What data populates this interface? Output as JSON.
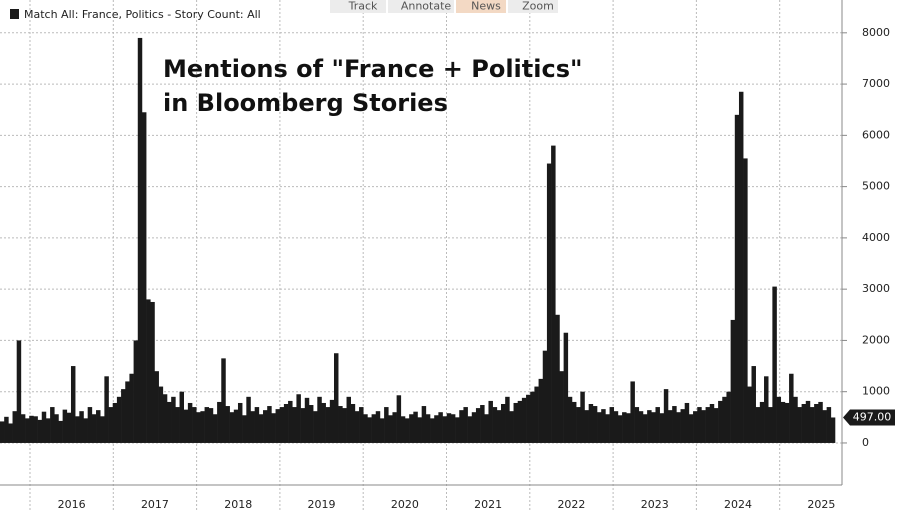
{
  "chart_data": {
    "type": "bar",
    "title": [
      "Mentions of \"France + Politics\"",
      "in Bloomberg Stories"
    ],
    "legend": "Match All: France, Politics - Story Count: All",
    "toolbar": [
      "Track",
      "Annotate",
      "News",
      "Zoom"
    ],
    "color": "#1a1a1a",
    "x_labels": [
      "2016",
      "2017",
      "2018",
      "2019",
      "2020",
      "2021",
      "2022",
      "2023",
      "2024",
      "2025"
    ],
    "ylim": [
      -820,
      8640
    ],
    "yticks": [
      0,
      1000,
      2000,
      3000,
      4000,
      5000,
      6000,
      7000,
      8000
    ],
    "grid": true,
    "last_value": {
      "value": 497,
      "label": "497.00"
    },
    "values": [
      420,
      510,
      380,
      620,
      2000,
      560,
      480,
      530,
      520,
      450,
      610,
      480,
      700,
      560,
      430,
      650,
      590,
      1500,
      520,
      620,
      480,
      700,
      560,
      640,
      520,
      1300,
      700,
      780,
      900,
      1050,
      1200,
      1350,
      2000,
      7900,
      6450,
      2800,
      2750,
      1400,
      1100,
      950,
      800,
      900,
      700,
      1000,
      650,
      780,
      700,
      600,
      620,
      700,
      680,
      560,
      800,
      1650,
      720,
      600,
      650,
      780,
      540,
      900,
      620,
      700,
      560,
      640,
      720,
      580,
      660,
      700,
      760,
      820,
      700,
      950,
      680,
      880,
      740,
      620,
      900,
      780,
      700,
      840,
      1750,
      720,
      680,
      900,
      760,
      620,
      700,
      560,
      500,
      560,
      620,
      480,
      700,
      540,
      600,
      930,
      520,
      480,
      560,
      610,
      500,
      720,
      560,
      480,
      540,
      600,
      520,
      580,
      560,
      500,
      640,
      700,
      520,
      600,
      680,
      740,
      560,
      820,
      700,
      640,
      760,
      900,
      620,
      780,
      820,
      880,
      940,
      1000,
      1100,
      1250,
      1800,
      5450,
      5800,
      2500,
      1400,
      2150,
      900,
      800,
      700,
      1000,
      640,
      760,
      720,
      600,
      660,
      560,
      700,
      620,
      540,
      600,
      580,
      1200,
      700,
      620,
      560,
      640,
      600,
      700,
      580,
      1050,
      640,
      720,
      600,
      660,
      780,
      560,
      620,
      700,
      640,
      700,
      760,
      680,
      820,
      900,
      1000,
      2400,
      6400,
      6850,
      5550,
      1100,
      1500,
      700,
      800,
      1300,
      700,
      3050,
      900,
      800,
      780,
      1350,
      900,
      700,
      760,
      820,
      700,
      760,
      800,
      640,
      700,
      497
    ]
  }
}
